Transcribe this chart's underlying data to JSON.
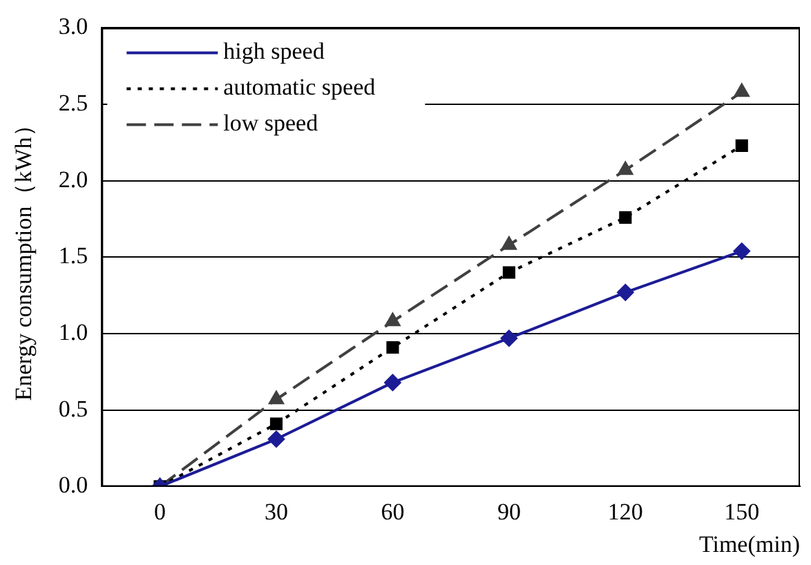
{
  "chart_data": {
    "type": "line",
    "xlabel": "Time(min)",
    "ylabel": "Energy consumption（kWh）",
    "x": [
      0,
      30,
      60,
      90,
      120,
      150
    ],
    "series": [
      {
        "name": "high speed",
        "color": "#1c1c96",
        "marker": "diamond",
        "line_style": "solid",
        "values": [
          0,
          0.31,
          0.68,
          0.97,
          1.27,
          1.54
        ]
      },
      {
        "name": "automatic speed",
        "color": "#000000",
        "marker": "square",
        "line_style": "dotted",
        "values": [
          0,
          0.41,
          0.91,
          1.4,
          1.76,
          2.23
        ]
      },
      {
        "name": "low speed",
        "color": "#404040",
        "marker": "triangle",
        "line_style": "dashed",
        "values": [
          0,
          0.57,
          1.08,
          1.58,
          2.07,
          2.58
        ]
      }
    ],
    "xlim": [
      -15,
      165
    ],
    "xticks": [
      0,
      30,
      60,
      90,
      120,
      150
    ],
    "ylim": [
      0,
      3
    ],
    "yticks": [
      {
        "value": 0,
        "label": "0.0"
      },
      {
        "value": 0.5,
        "label": "0.5"
      },
      {
        "value": 1,
        "label": "1.0"
      },
      {
        "value": 1.5,
        "label": "1.5"
      },
      {
        "value": 2,
        "label": "2.0"
      },
      {
        "value": 2.5,
        "label": "2.5"
      },
      {
        "value": 3,
        "label": "3.0"
      }
    ],
    "grid": "y",
    "legend": "top left"
  }
}
